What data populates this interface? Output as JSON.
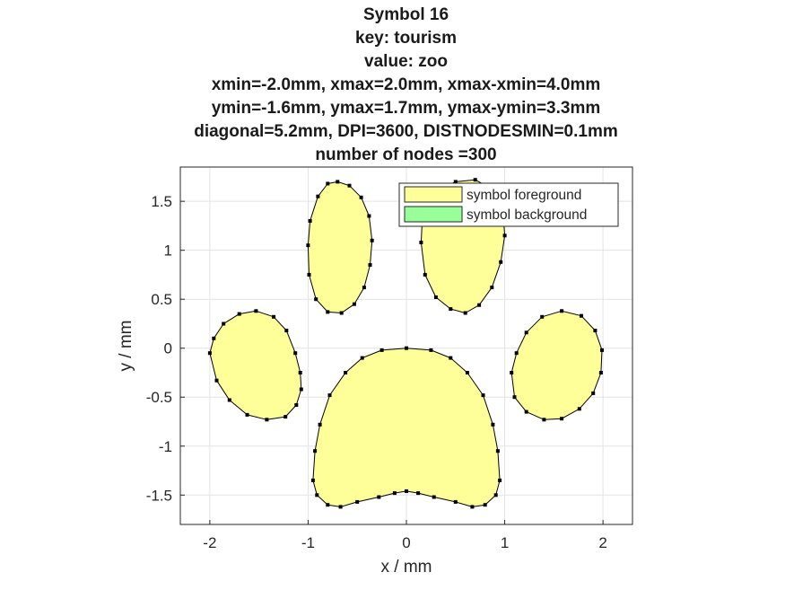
{
  "title_lines": [
    "Symbol 16",
    "key: tourism",
    "value: zoo",
    "xmin=-2.0mm, xmax=2.0mm, xmax-xmin=4.0mm",
    "ymin=-1.6mm, ymax=1.7mm, ymax-ymin=3.3mm",
    "diagonal=5.2mm, DPI=3600, DISTNODESMIN=0.1mm",
    "number of nodes =300"
  ],
  "chart_data": {
    "type": "area",
    "xlabel": "x / mm",
    "ylabel": "y / mm",
    "xlim": [
      -2.3,
      2.3
    ],
    "ylim": [
      -1.8,
      1.85
    ],
    "xticks": [
      -2,
      -1,
      0,
      1,
      2
    ],
    "yticks": [
      -1.5,
      -1,
      -0.5,
      0,
      0.5,
      1,
      1.5
    ],
    "grid": true,
    "legend_position": "top-right",
    "series": [
      {
        "name": "symbol foreground",
        "color": "#ffff99"
      },
      {
        "name": "symbol background",
        "color": "#99ff99"
      }
    ],
    "shapes": [
      {
        "part": "upper-left-toe",
        "points": [
          [
            -1.0,
            1.05
          ],
          [
            -0.98,
            1.3
          ],
          [
            -0.9,
            1.55
          ],
          [
            -0.8,
            1.68
          ],
          [
            -0.7,
            1.7
          ],
          [
            -0.58,
            1.66
          ],
          [
            -0.46,
            1.54
          ],
          [
            -0.38,
            1.35
          ],
          [
            -0.35,
            1.1
          ],
          [
            -0.37,
            0.85
          ],
          [
            -0.43,
            0.62
          ],
          [
            -0.53,
            0.45
          ],
          [
            -0.66,
            0.36
          ],
          [
            -0.8,
            0.37
          ],
          [
            -0.92,
            0.5
          ],
          [
            -0.99,
            0.75
          ]
        ]
      },
      {
        "part": "upper-right-toe",
        "points": [
          [
            0.15,
            1.08
          ],
          [
            0.16,
            1.28
          ],
          [
            0.22,
            1.48
          ],
          [
            0.33,
            1.62
          ],
          [
            0.5,
            1.7
          ],
          [
            0.7,
            1.72
          ],
          [
            0.88,
            1.62
          ],
          [
            0.98,
            1.42
          ],
          [
            1.0,
            1.15
          ],
          [
            0.96,
            0.88
          ],
          [
            0.87,
            0.62
          ],
          [
            0.74,
            0.44
          ],
          [
            0.6,
            0.36
          ],
          [
            0.45,
            0.4
          ],
          [
            0.3,
            0.52
          ],
          [
            0.19,
            0.75
          ]
        ]
      },
      {
        "part": "left-toe",
        "points": [
          [
            -2.0,
            -0.05
          ],
          [
            -1.96,
            0.1
          ],
          [
            -1.86,
            0.25
          ],
          [
            -1.7,
            0.35
          ],
          [
            -1.53,
            0.38
          ],
          [
            -1.35,
            0.32
          ],
          [
            -1.22,
            0.18
          ],
          [
            -1.13,
            -0.05
          ],
          [
            -1.08,
            -0.25
          ],
          [
            -1.07,
            -0.42
          ],
          [
            -1.12,
            -0.58
          ],
          [
            -1.23,
            -0.7
          ],
          [
            -1.42,
            -0.73
          ],
          [
            -1.62,
            -0.68
          ],
          [
            -1.8,
            -0.53
          ],
          [
            -1.93,
            -0.33
          ]
        ]
      },
      {
        "part": "right-toe",
        "points": [
          [
            1.07,
            -0.25
          ],
          [
            1.12,
            -0.05
          ],
          [
            1.22,
            0.16
          ],
          [
            1.38,
            0.32
          ],
          [
            1.58,
            0.38
          ],
          [
            1.78,
            0.33
          ],
          [
            1.92,
            0.18
          ],
          [
            1.99,
            -0.02
          ],
          [
            1.98,
            -0.25
          ],
          [
            1.9,
            -0.46
          ],
          [
            1.76,
            -0.62
          ],
          [
            1.58,
            -0.72
          ],
          [
            1.4,
            -0.73
          ],
          [
            1.22,
            -0.65
          ],
          [
            1.1,
            -0.5
          ]
        ]
      },
      {
        "part": "main-pad",
        "points": [
          [
            -0.93,
            -1.05
          ],
          [
            -0.95,
            -1.35
          ],
          [
            -0.91,
            -1.5
          ],
          [
            -0.8,
            -1.6
          ],
          [
            -0.67,
            -1.62
          ],
          [
            -0.5,
            -1.57
          ],
          [
            -0.28,
            -1.52
          ],
          [
            -0.12,
            -1.48
          ],
          [
            0.0,
            -1.46
          ],
          [
            0.12,
            -1.48
          ],
          [
            0.28,
            -1.52
          ],
          [
            0.5,
            -1.57
          ],
          [
            0.67,
            -1.62
          ],
          [
            0.8,
            -1.6
          ],
          [
            0.91,
            -1.5
          ],
          [
            0.95,
            -1.35
          ],
          [
            0.93,
            -1.05
          ],
          [
            0.88,
            -0.78
          ],
          [
            0.78,
            -0.48
          ],
          [
            0.62,
            -0.25
          ],
          [
            0.45,
            -0.1
          ],
          [
            0.25,
            -0.02
          ],
          [
            0.0,
            0.0
          ],
          [
            -0.25,
            -0.02
          ],
          [
            -0.45,
            -0.1
          ],
          [
            -0.62,
            -0.25
          ],
          [
            -0.78,
            -0.48
          ],
          [
            -0.88,
            -0.78
          ]
        ]
      }
    ]
  }
}
